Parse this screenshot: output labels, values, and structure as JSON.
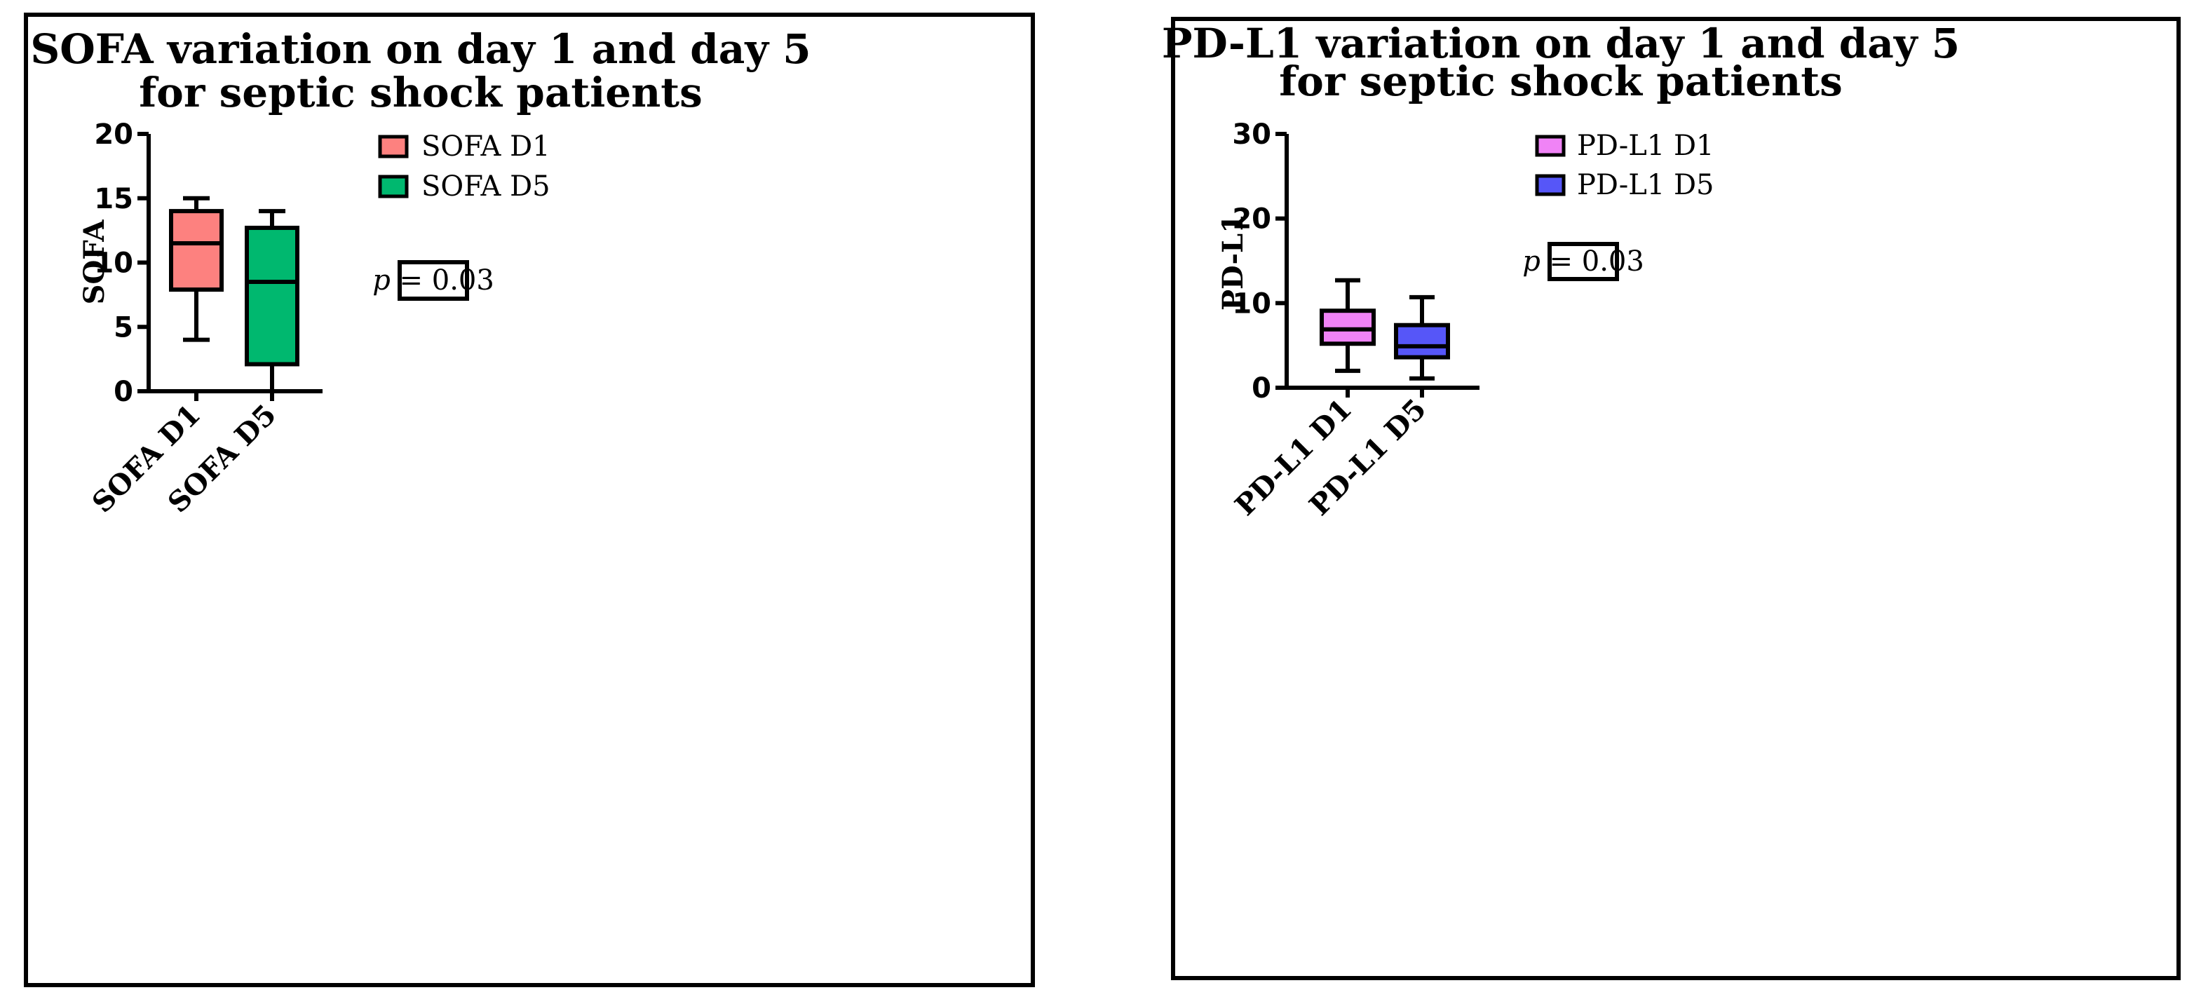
{
  "chart_data": [
    {
      "type": "box",
      "title_lines": [
        "SOFA variation on day 1 and day 5",
        "for septic shock patients"
      ],
      "ylabel": "SOFA",
      "xlabel": "",
      "ylim": [
        0,
        20
      ],
      "yticks": [
        0,
        5,
        10,
        15,
        20
      ],
      "ytick_labels": [
        "0",
        "5",
        "10",
        "15",
        "20"
      ],
      "categories": [
        "SOFA D1",
        "SOFA D5"
      ],
      "series": [
        {
          "name": "SOFA D1",
          "color": "#fd817f",
          "min": 4,
          "q1": 7.9,
          "median": 11.5,
          "q3": 14,
          "max": 15
        },
        {
          "name": "SOFA D5",
          "color": "#00b86f",
          "min": 0,
          "q1": 2.1,
          "median": 8.5,
          "q3": 12.7,
          "max": 14
        }
      ],
      "legend": [
        "SOFA D1",
        "SOFA D5"
      ],
      "annotation": {
        "italic": "p",
        "rest": " = 0.03"
      }
    },
    {
      "type": "box",
      "title_lines": [
        "PD-L1 variation on day 1 and day 5",
        "for septic shock patients"
      ],
      "ylabel": "PD-L1",
      "xlabel": "",
      "ylim": [
        0,
        30
      ],
      "yticks": [
        0,
        10,
        20,
        30
      ],
      "ytick_labels": [
        "0",
        "10",
        "20",
        "30"
      ],
      "categories": [
        "PD-L1 D1",
        "PD-L1 D5"
      ],
      "series": [
        {
          "name": "PD-L1 D1",
          "color": "#f083f6",
          "min": 2,
          "q1": 5.2,
          "median": 6.9,
          "q3": 9.1,
          "max": 12.7
        },
        {
          "name": "PD-L1 D5",
          "color": "#5656f8",
          "min": 1.1,
          "q1": 3.6,
          "median": 4.9,
          "q3": 7.4,
          "max": 10.7
        }
      ],
      "legend": [
        "PD-L1 D1",
        "PD-L1 D5"
      ],
      "annotation": {
        "italic": "p",
        "rest": " = 0.03"
      }
    }
  ]
}
